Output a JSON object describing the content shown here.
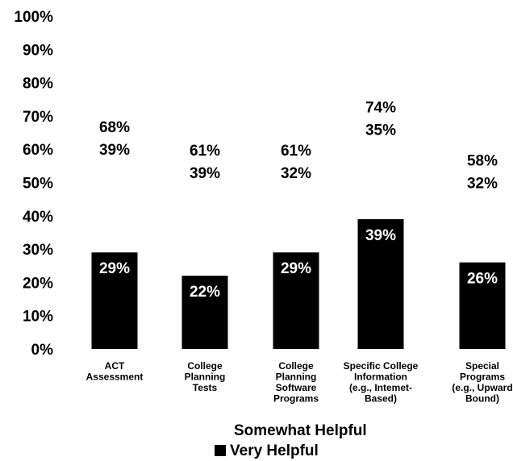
{
  "chart_data": {
    "type": "bar",
    "title": "",
    "xlabel": "",
    "ylabel": "",
    "ylim": [
      0,
      100
    ],
    "y_ticks": [
      "0%",
      "10%",
      "20%",
      "30%",
      "40%",
      "50%",
      "60%",
      "70%",
      "80%",
      "90%",
      "100%"
    ],
    "categories": [
      [
        "ACT",
        "Assessment"
      ],
      [
        "College",
        "Planning",
        "Tests"
      ],
      [
        "College",
        "Planning",
        "Software",
        "Programs"
      ],
      [
        "Specific College",
        "Information",
        "(e.g., Intemet-",
        "Based)"
      ],
      [
        "Special",
        "Programs",
        "(e.g., Upward",
        "Bound)"
      ]
    ],
    "series": [
      {
        "name": "Somewhat Helpful",
        "values": [
          39,
          39,
          32,
          35,
          32
        ],
        "labels": [
          "39%",
          "39%",
          "32%",
          "35%",
          "32%"
        ]
      },
      {
        "name": "Very Helpful",
        "values": [
          29,
          22,
          29,
          39,
          26
        ],
        "labels": [
          "29%",
          "22%",
          "29%",
          "39%",
          "26%"
        ],
        "color": "#000000"
      }
    ],
    "totals": {
      "values": [
        68,
        61,
        61,
        74,
        58
      ],
      "labels": [
        "68%",
        "61%",
        "61%",
        "74%",
        "58%"
      ]
    },
    "legend": {
      "position": "bottom-center",
      "items": [
        "Somewhat Helpful",
        "Very Helpful"
      ]
    }
  }
}
